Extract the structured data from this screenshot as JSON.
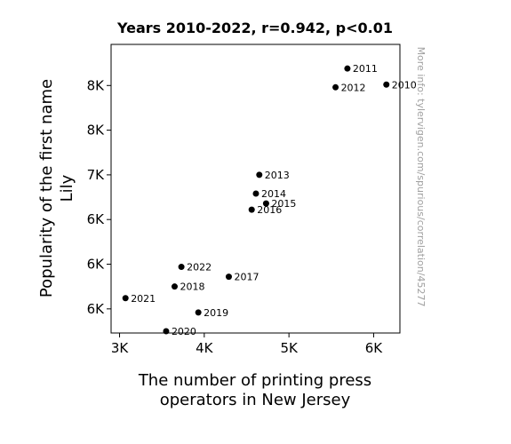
{
  "chart_data": {
    "type": "scatter",
    "title": "Years 2010-2022, r=0.942, p<0.01",
    "xlabel": [
      "The number of printing press",
      "operators in New Jersey"
    ],
    "ylabel": [
      "Popularity of the first name",
      "Lily"
    ],
    "xlim": [
      2900,
      6310
    ],
    "ylim": [
      5330,
      8560
    ],
    "x_ticks": [
      {
        "value": 3000,
        "label": "3K"
      },
      {
        "value": 4000,
        "label": "4K"
      },
      {
        "value": 5000,
        "label": "5K"
      },
      {
        "value": 6000,
        "label": "6K"
      }
    ],
    "y_ticks": [
      {
        "value": 5600,
        "label": "6K"
      },
      {
        "value": 6100,
        "label": "6K"
      },
      {
        "value": 6600,
        "label": "6K"
      },
      {
        "value": 7100,
        "label": "7K"
      },
      {
        "value": 7600,
        "label": "8K"
      },
      {
        "value": 8100,
        "label": "8K"
      }
    ],
    "points": [
      {
        "label": "2010",
        "x": 6150,
        "y": 8110
      },
      {
        "label": "2011",
        "x": 5690,
        "y": 8290
      },
      {
        "label": "2012",
        "x": 5550,
        "y": 8080
      },
      {
        "label": "2013",
        "x": 4650,
        "y": 7100
      },
      {
        "label": "2014",
        "x": 4610,
        "y": 6890
      },
      {
        "label": "2015",
        "x": 4730,
        "y": 6780
      },
      {
        "label": "2016",
        "x": 4560,
        "y": 6710
      },
      {
        "label": "2017",
        "x": 4290,
        "y": 5960
      },
      {
        "label": "2018",
        "x": 3650,
        "y": 5850
      },
      {
        "label": "2019",
        "x": 3930,
        "y": 5560
      },
      {
        "label": "2020",
        "x": 3550,
        "y": 5350
      },
      {
        "label": "2021",
        "x": 3070,
        "y": 5720
      },
      {
        "label": "2022",
        "x": 3730,
        "y": 6070
      }
    ],
    "marker_color": "#000000",
    "grid": false,
    "legend": "none"
  },
  "watermark": "More info: tylervigen.com/spurious/correlation/45277"
}
